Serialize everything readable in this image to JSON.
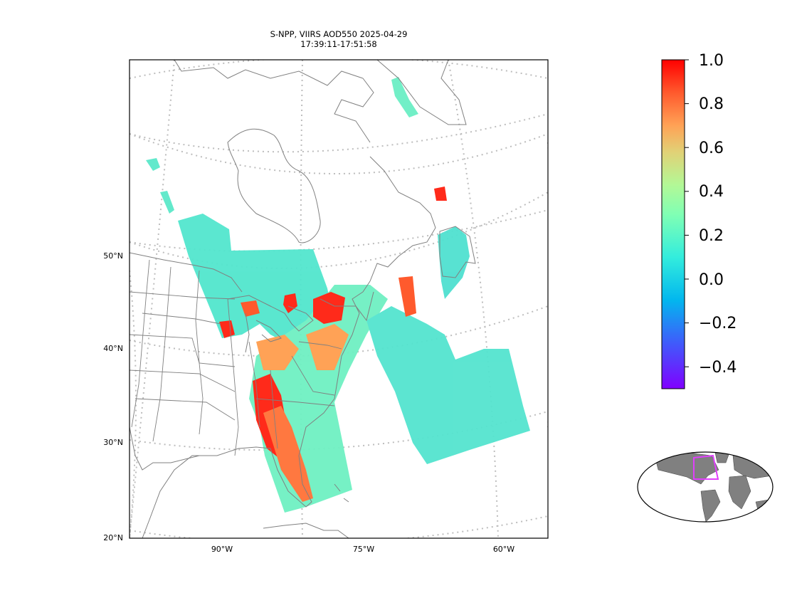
{
  "title": {
    "line1": "S-NPP, VIIRS AOD550 2025-04-29",
    "line2": "17:39:11-17:51:58"
  },
  "map": {
    "lat_labels": [
      "50°N",
      "40°N",
      "30°N",
      "20°N"
    ],
    "lon_labels": [
      "90°W",
      "75°W",
      "60°W"
    ]
  },
  "colorbar": {
    "min": -0.5,
    "max": 1.0,
    "colormap": "rainbow",
    "tick_labels": [
      "1.0",
      "0.8",
      "0.6",
      "0.4",
      "0.2",
      "0.0",
      "−0.2",
      "−0.4"
    ]
  },
  "inset": {
    "box_color": "#e040fb"
  },
  "colors": {
    "coastline": "#808080",
    "gridline": "#bdbdbd",
    "land": "#808080"
  }
}
